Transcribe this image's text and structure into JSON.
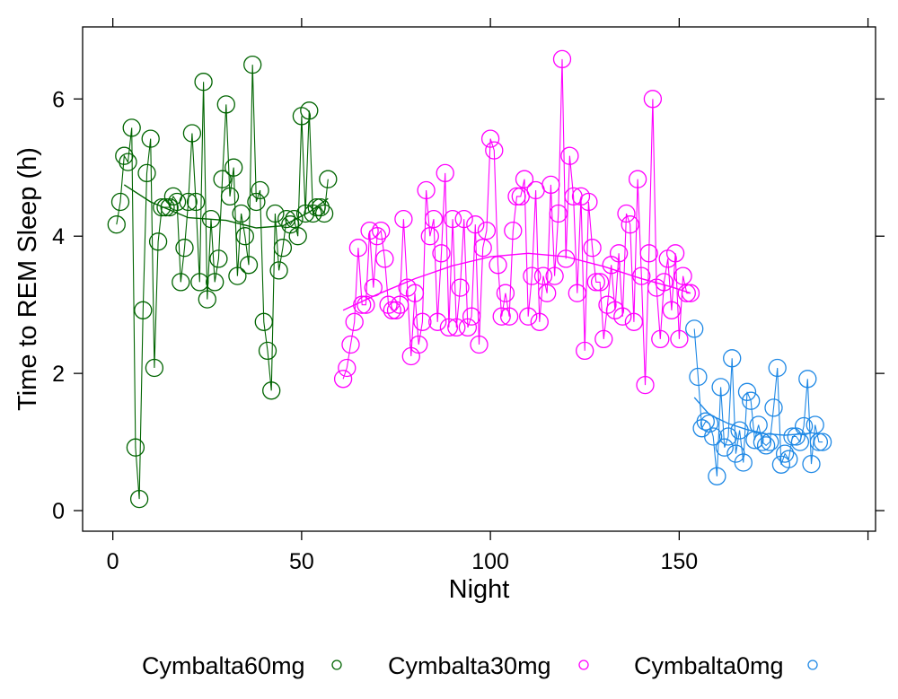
{
  "chart_data": {
    "type": "line",
    "xlabel": "Night",
    "ylabel": "Time to REM Sleep (h)",
    "xlim": [
      -8,
      202
    ],
    "ylim": [
      -0.3,
      7.05
    ],
    "xticks": [
      0,
      50,
      100,
      150
    ],
    "yticks": [
      0,
      2,
      4,
      6
    ],
    "grid": false,
    "legend_position": "bottom",
    "series": [
      {
        "name": "Cymbalta60mg",
        "color": "#006400",
        "x": [
          1,
          2,
          3,
          4,
          5,
          6,
          7,
          8,
          9,
          10,
          11,
          12,
          13,
          14,
          15,
          16,
          17,
          18,
          19,
          20,
          21,
          22,
          23,
          24,
          25,
          26,
          27,
          28,
          29,
          30,
          31,
          32,
          33,
          34,
          35,
          36,
          37,
          38,
          39,
          40,
          41,
          42,
          43,
          44,
          45,
          46,
          47,
          48,
          49,
          50,
          51,
          52,
          53,
          54,
          55,
          56,
          57
        ],
        "y": [
          4.17,
          4.5,
          5.17,
          5.08,
          5.58,
          0.92,
          0.17,
          2.92,
          4.92,
          5.42,
          2.08,
          3.92,
          4.42,
          4.42,
          4.42,
          4.58,
          4.5,
          3.33,
          3.83,
          4.5,
          5.5,
          4.5,
          3.33,
          6.25,
          3.08,
          4.25,
          3.33,
          3.67,
          4.83,
          5.92,
          4.58,
          5.0,
          3.42,
          4.33,
          4.0,
          3.58,
          6.5,
          4.5,
          4.67,
          2.75,
          2.33,
          1.75,
          4.33,
          3.5,
          3.83,
          4.25,
          4.17,
          4.25,
          4.0,
          5.75,
          4.33,
          5.83,
          4.33,
          4.42,
          4.42,
          4.33,
          4.83
        ],
        "smooth": [
          [
            3,
            4.75
          ],
          [
            10,
            4.5
          ],
          [
            20,
            4.27
          ],
          [
            30,
            4.23
          ],
          [
            38,
            4.12
          ],
          [
            45,
            4.15
          ],
          [
            52,
            4.35
          ],
          [
            57,
            4.55
          ]
        ]
      },
      {
        "name": "Cymbalta30mg",
        "color": "#ff00ff",
        "x": [
          61,
          62,
          63,
          64,
          65,
          66,
          67,
          68,
          69,
          70,
          71,
          72,
          73,
          74,
          75,
          76,
          77,
          78,
          79,
          80,
          81,
          82,
          83,
          84,
          85,
          86,
          87,
          88,
          89,
          90,
          91,
          92,
          93,
          94,
          95,
          96,
          97,
          98,
          99,
          100,
          101,
          102,
          103,
          104,
          105,
          106,
          107,
          108,
          109,
          110,
          111,
          112,
          113,
          114,
          115,
          116,
          117,
          118,
          119,
          120,
          121,
          122,
          123,
          124,
          125,
          126,
          127,
          128,
          129,
          130,
          131,
          132,
          133,
          134,
          135,
          136,
          137,
          138,
          139,
          140,
          141,
          142,
          143,
          144,
          145,
          146,
          147,
          148,
          149,
          150,
          151,
          152,
          153
        ],
        "y": [
          1.92,
          2.08,
          2.42,
          2.75,
          3.83,
          3.0,
          3.0,
          4.08,
          3.25,
          4.0,
          4.08,
          3.67,
          3.0,
          2.92,
          2.92,
          3.0,
          4.25,
          3.25,
          2.25,
          3.17,
          2.42,
          2.75,
          4.67,
          4.0,
          4.25,
          2.75,
          3.75,
          4.92,
          2.67,
          4.25,
          2.67,
          3.25,
          4.25,
          2.67,
          2.83,
          4.17,
          2.42,
          3.83,
          4.08,
          5.42,
          5.25,
          3.58,
          2.83,
          3.17,
          2.83,
          4.08,
          4.58,
          4.58,
          4.83,
          2.83,
          3.42,
          4.67,
          2.75,
          3.42,
          3.17,
          4.75,
          3.42,
          4.33,
          6.58,
          3.67,
          5.17,
          4.58,
          3.17,
          4.58,
          2.33,
          4.5,
          3.83,
          3.33,
          3.33,
          2.5,
          3.0,
          3.58,
          2.92,
          3.75,
          2.83,
          4.33,
          4.17,
          2.75,
          4.83,
          3.42,
          1.83,
          3.75,
          6.0,
          3.25,
          2.5,
          3.33,
          3.67,
          2.92,
          3.75,
          2.5,
          3.42,
          3.17,
          3.17
        ],
        "smooth": [
          [
            61,
            2.92
          ],
          [
            70,
            3.15
          ],
          [
            80,
            3.38
          ],
          [
            90,
            3.57
          ],
          [
            100,
            3.7
          ],
          [
            110,
            3.75
          ],
          [
            120,
            3.7
          ],
          [
            130,
            3.56
          ],
          [
            140,
            3.38
          ],
          [
            148,
            3.26
          ],
          [
            153,
            3.17
          ]
        ]
      },
      {
        "name": "Cymbalta0mg",
        "color": "#1e88e5",
        "x": [
          154,
          155,
          156,
          157,
          158,
          159,
          160,
          161,
          162,
          163,
          164,
          165,
          166,
          167,
          168,
          169,
          170,
          171,
          172,
          173,
          174,
          175,
          176,
          177,
          178,
          179,
          180,
          181,
          182,
          183,
          184,
          185,
          186,
          187,
          188
        ],
        "y": [
          2.65,
          1.95,
          1.2,
          1.3,
          1.27,
          1.08,
          0.5,
          1.8,
          0.92,
          1.08,
          2.22,
          0.83,
          1.17,
          0.7,
          1.73,
          1.6,
          1.03,
          1.25,
          1.0,
          0.95,
          1.0,
          1.5,
          2.08,
          0.67,
          0.83,
          0.75,
          1.08,
          1.08,
          1.0,
          1.23,
          1.92,
          0.68,
          1.25,
          1.0,
          1.0
        ],
        "smooth": [
          [
            154,
            1.65
          ],
          [
            158,
            1.4
          ],
          [
            163,
            1.27
          ],
          [
            168,
            1.18
          ],
          [
            173,
            1.12
          ],
          [
            178,
            1.1
          ],
          [
            183,
            1.12
          ],
          [
            185,
            1.13
          ]
        ]
      }
    ]
  }
}
